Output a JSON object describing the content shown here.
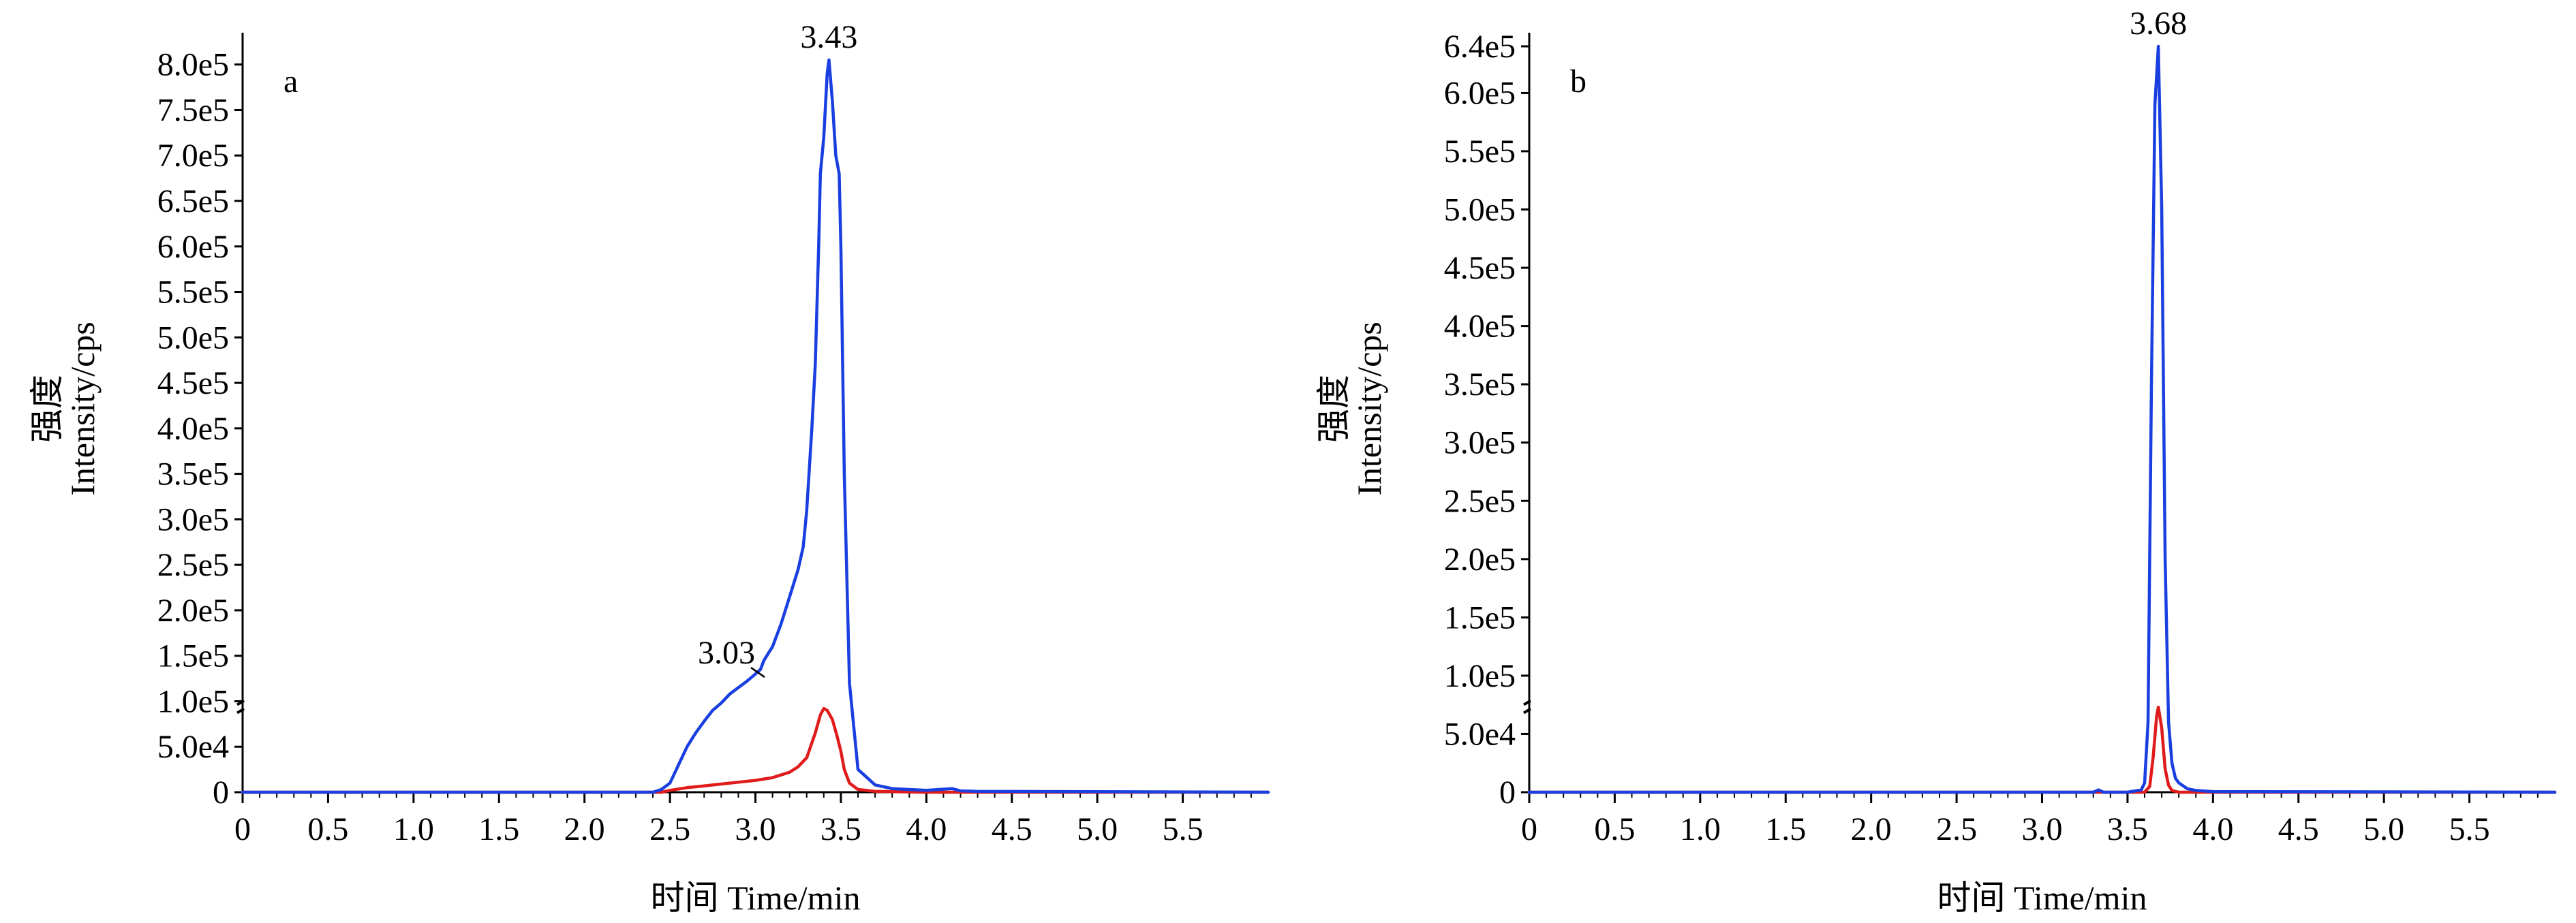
{
  "chart_data": [
    {
      "type": "line",
      "panel_label": "a",
      "xlabel": "时间 Time/min",
      "ylabel_cn": "强度",
      "ylabel_en": "Intensity/cps",
      "xlim": [
        0,
        6.0
      ],
      "ylim": [
        0,
        820000
      ],
      "x_ticks": [
        "0",
        "0.5",
        "1.0",
        "1.5",
        "2.0",
        "2.5",
        "3.0",
        "3.5",
        "4.0",
        "4.5",
        "5.0",
        "5.5"
      ],
      "y_ticks": [
        "0",
        "5.0e4",
        "1.0e5",
        "1.5e5",
        "2.0e5",
        "2.5e5",
        "3.0e5",
        "3.5e5",
        "4.0e5",
        "4.5e5",
        "5.0e5",
        "5.5e5",
        "6.0e5",
        "6.5e5",
        "7.0e5",
        "7.5e5",
        "8.0e5"
      ],
      "grid": false,
      "annotations": [
        {
          "text": "3.43",
          "x": 3.43,
          "y": 805000
        },
        {
          "text": "3.03",
          "x": 3.03,
          "y": 128000
        }
      ],
      "series": [
        {
          "color": "#1a3fe0",
          "x": [
            0,
            2.4,
            2.45,
            2.5,
            2.55,
            2.6,
            2.65,
            2.7,
            2.75,
            2.8,
            2.85,
            2.9,
            2.95,
            3.0,
            3.03,
            3.05,
            3.1,
            3.15,
            3.2,
            3.25,
            3.28,
            3.3,
            3.33,
            3.35,
            3.37,
            3.38,
            3.4,
            3.42,
            3.43,
            3.45,
            3.47,
            3.49,
            3.5,
            3.52,
            3.55,
            3.6,
            3.7,
            3.8,
            4.0,
            4.15,
            4.2,
            4.3,
            5.0,
            6.0
          ],
          "y": [
            0,
            0,
            3000,
            10000,
            30000,
            50000,
            65000,
            78000,
            90000,
            98000,
            108000,
            115000,
            122000,
            130000,
            135000,
            145000,
            160000,
            185000,
            215000,
            245000,
            270000,
            310000,
            400000,
            470000,
            600000,
            680000,
            720000,
            790000,
            805000,
            760000,
            700000,
            680000,
            600000,
            350000,
            120000,
            25000,
            8000,
            4000,
            2000,
            4000,
            1500,
            1000,
            500,
            0
          ]
        },
        {
          "color": "#e01b1b",
          "x": [
            0,
            2.45,
            2.5,
            2.6,
            2.7,
            2.8,
            2.9,
            3.0,
            3.1,
            3.2,
            3.25,
            3.3,
            3.35,
            3.38,
            3.4,
            3.42,
            3.45,
            3.48,
            3.5,
            3.52,
            3.55,
            3.6,
            3.7,
            4.0,
            6.0
          ],
          "y": [
            0,
            0,
            2000,
            5000,
            7000,
            9000,
            11000,
            13000,
            16000,
            22000,
            28000,
            38000,
            65000,
            85000,
            92000,
            90000,
            80000,
            60000,
            45000,
            25000,
            10000,
            3000,
            1000,
            0,
            0
          ]
        }
      ]
    },
    {
      "type": "line",
      "panel_label": "b",
      "xlabel": "时间 Time/min",
      "ylabel_cn": "强度",
      "ylabel_en": "Intensity/cps",
      "xlim": [
        0,
        6.0
      ],
      "ylim": [
        0,
        640000
      ],
      "x_ticks": [
        "0",
        "0.5",
        "1.0",
        "1.5",
        "2.0",
        "2.5",
        "3.0",
        "3.5",
        "4.0",
        "4.5",
        "5.0",
        "5.5"
      ],
      "y_ticks": [
        "0",
        "5.0e4",
        "1.0e5",
        "1.5e5",
        "2.0e5",
        "2.5e5",
        "3.0e5",
        "3.5e5",
        "4.0e5",
        "4.5e5",
        "5.0e5",
        "5.5e5",
        "6.0e5",
        "6.4e5"
      ],
      "grid": false,
      "annotations": [
        {
          "text": "3.68",
          "x": 3.68,
          "y": 640000
        }
      ],
      "series": [
        {
          "color": "#1a3fe0",
          "x": [
            0,
            3.3,
            3.33,
            3.36,
            3.5,
            3.58,
            3.6,
            3.62,
            3.64,
            3.66,
            3.68,
            3.7,
            3.72,
            3.74,
            3.76,
            3.78,
            3.8,
            3.85,
            3.9,
            4.0,
            6.0
          ],
          "y": [
            0,
            0,
            2000,
            0,
            0,
            2000,
            8000,
            60000,
            350000,
            590000,
            640000,
            500000,
            200000,
            60000,
            25000,
            12000,
            8000,
            3000,
            1500,
            500,
            0
          ]
        },
        {
          "color": "#e01b1b",
          "x": [
            0,
            3.6,
            3.63,
            3.65,
            3.67,
            3.68,
            3.7,
            3.72,
            3.74,
            3.76,
            3.8,
            6.0
          ],
          "y": [
            0,
            0,
            5000,
            30000,
            65000,
            73000,
            55000,
            20000,
            6000,
            1500,
            0,
            0
          ]
        }
      ]
    }
  ]
}
